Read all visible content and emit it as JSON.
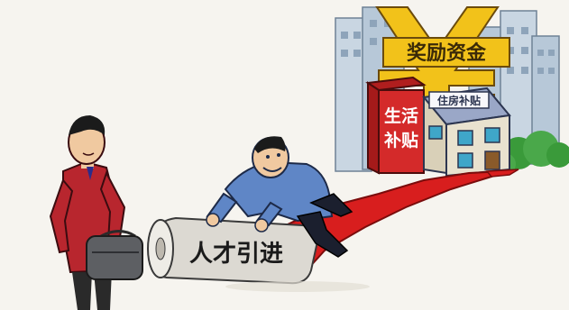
{
  "illustration": {
    "yen_sign_text": "奖励资金",
    "red_box_text_line1": "生活",
    "red_box_text_line2": "补贴",
    "house_sign_text": "住房补贴",
    "carpet_roll_text": "人才引进"
  },
  "colors": {
    "background": "#f6f4ef",
    "carpet_red": "#d81e1e",
    "yen_gold": "#f2c21a",
    "box_red": "#d42a2a",
    "house_wall": "#e9e2cf",
    "house_roof": "#9aa7c7",
    "window_blue": "#3fa6c9",
    "city_blue": "#9fb4c8",
    "tree_green": "#3a9a3a",
    "jacket_red": "#b8262e",
    "shirt_blue": "#5f86c6",
    "skin": "#f0c9a0"
  }
}
